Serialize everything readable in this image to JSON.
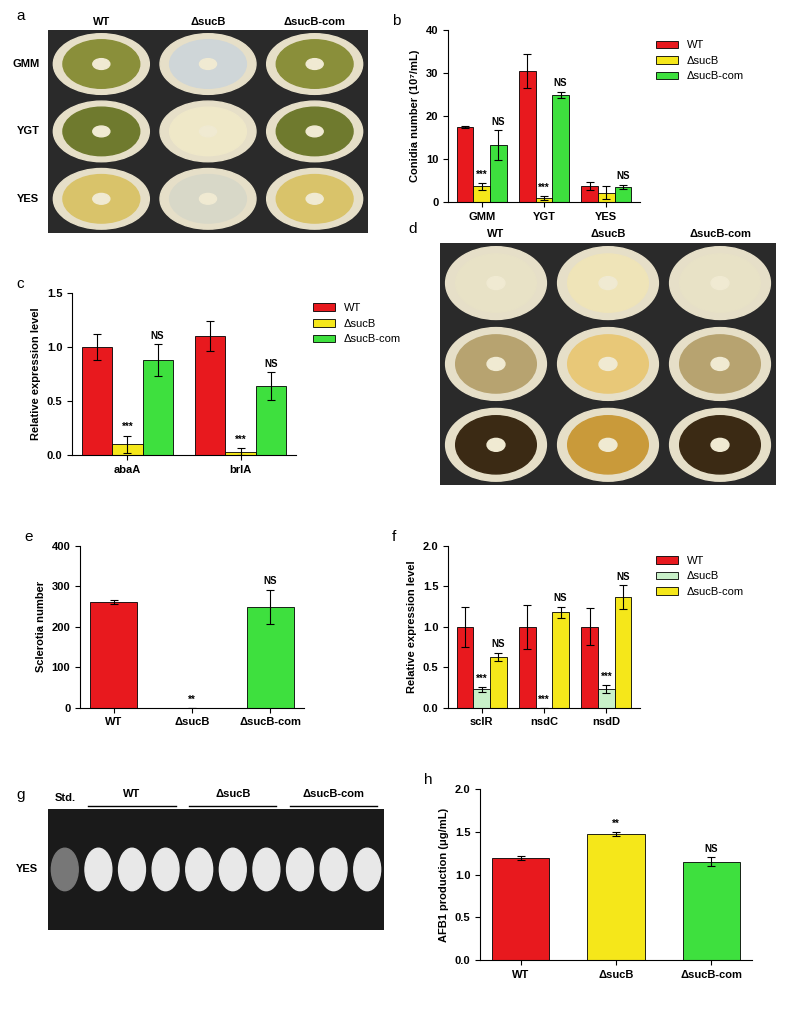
{
  "chart_data": [
    {
      "panel": "b",
      "type": "bar",
      "y_label": "Conidia number (10⁷/mL)",
      "categories": [
        "GMM",
        "YGT",
        "YES"
      ],
      "series": [
        {
          "name": "WT",
          "color": "#e8191e",
          "values": [
            17.5,
            30.5,
            3.8
          ],
          "error": [
            0.3,
            4.0,
            1.0
          ],
          "annotations": [
            null,
            null,
            null
          ]
        },
        {
          "name": "ΔsucB",
          "color": "#f5e71a",
          "values": [
            3.7,
            1.0,
            2.2
          ],
          "error": [
            0.8,
            0.4,
            1.5
          ],
          "annotations": [
            "***",
            "***",
            null
          ]
        },
        {
          "name": "ΔsucB-com",
          "color": "#3ee03e",
          "values": [
            13.3,
            25.0,
            3.6
          ],
          "error": [
            3.5,
            0.7,
            0.5
          ],
          "annotations": [
            "NS",
            "NS",
            "NS"
          ]
        }
      ],
      "ylim": [
        0,
        40
      ],
      "yticks": [
        0,
        10,
        20,
        30,
        40
      ],
      "legend": "upper left"
    },
    {
      "panel": "c",
      "type": "bar",
      "y_label": "Relative expression level",
      "categories": [
        "abaA",
        "brlA"
      ],
      "series": [
        {
          "name": "WT",
          "color": "#e8191e",
          "values": [
            1.0,
            1.1
          ],
          "error": [
            0.12,
            0.14
          ],
          "annotations": [
            null,
            null
          ]
        },
        {
          "name": "ΔsucB",
          "color": "#f5e71a",
          "values": [
            0.1,
            0.03
          ],
          "error": [
            0.08,
            0.03
          ],
          "annotations": [
            "***",
            "***"
          ]
        },
        {
          "name": "ΔsucB-com",
          "color": "#3ee03e",
          "values": [
            0.88,
            0.64
          ],
          "error": [
            0.15,
            0.13
          ],
          "annotations": [
            "NS",
            "NS"
          ]
        }
      ],
      "ylim": [
        0,
        1.5
      ],
      "yticks": [
        {
          "value": 0,
          "label": "0.0"
        },
        {
          "value": 0.5,
          "label": "0.5"
        },
        {
          "value": 1.0,
          "label": "1.0"
        },
        {
          "value": 1.5,
          "label": "1.5"
        }
      ],
      "legend": "upper left"
    },
    {
      "panel": "e",
      "type": "bar",
      "y_label": "Sclerotia number",
      "categories": [
        "WT",
        "ΔsucB",
        "ΔsucB-com"
      ],
      "values": [
        262,
        0,
        250
      ],
      "error": [
        5,
        0,
        42
      ],
      "annotations": [
        null,
        "**",
        "NS"
      ],
      "colors": [
        "#e8191e",
        "#f5e71a",
        "#3ee03e"
      ],
      "ylim": [
        0,
        400
      ],
      "yticks": [
        0,
        100,
        200,
        300,
        400
      ]
    },
    {
      "panel": "f",
      "type": "bar",
      "y_label": "Relative expression level",
      "categories": [
        "sclR",
        "nsdC",
        "nsdD"
      ],
      "series": [
        {
          "name": "WT",
          "color": "#e8191e",
          "values": [
            1.0,
            1.0,
            1.0
          ],
          "error": [
            0.25,
            0.27,
            0.23
          ],
          "annotations": [
            null,
            null,
            null
          ]
        },
        {
          "name": "ΔsucB",
          "color": "#c8f0c8",
          "values": [
            0.23,
            0.0,
            0.23
          ],
          "error": [
            0.03,
            0.0,
            0.05
          ],
          "annotations": [
            "***",
            "***",
            "***"
          ]
        },
        {
          "name": "ΔsucB-com",
          "color": "#f5e71a",
          "values": [
            0.63,
            1.18,
            1.37
          ],
          "error": [
            0.05,
            0.07,
            0.15
          ],
          "annotations": [
            "NS",
            "NS",
            "NS"
          ]
        }
      ],
      "ylim": [
        0,
        2.0
      ],
      "yticks": [
        {
          "value": 0,
          "label": "0.0"
        },
        {
          "value": 0.5,
          "label": "0.5"
        },
        {
          "value": 1.0,
          "label": "1.0"
        },
        {
          "value": 1.5,
          "label": "1.5"
        },
        {
          "value": 2.0,
          "label": "2.0"
        }
      ],
      "legend": "upper left"
    },
    {
      "panel": "h",
      "type": "bar",
      "y_label": "AFB1 production (μg/mL)",
      "categories": [
        "WT",
        "ΔsucB",
        "ΔsucB-com"
      ],
      "values": [
        1.19,
        1.47,
        1.15
      ],
      "error": [
        0.02,
        0.02,
        0.05
      ],
      "annotations": [
        null,
        "**",
        "NS"
      ],
      "colors": [
        "#e8191e",
        "#f5e71a",
        "#3ee03e"
      ],
      "ylim": [
        0,
        2.0
      ],
      "yticks": [
        {
          "value": 0,
          "label": "0.0"
        },
        {
          "value": 0.5,
          "label": "0.5"
        },
        {
          "value": 1.0,
          "label": "1.0"
        },
        {
          "value": 1.5,
          "label": "1.5"
        },
        {
          "value": 2.0,
          "label": "2.0"
        }
      ]
    }
  ],
  "images": [
    {
      "panel": "a",
      "columns": [
        "WT",
        "ΔsucB",
        "ΔsucB-com"
      ],
      "rows": [
        "GMM",
        "YGT",
        "YES"
      ]
    },
    {
      "panel": "d",
      "columns": [
        "WT",
        "ΔsucB",
        "ΔsucB-com"
      ],
      "rows": []
    },
    {
      "panel": "g",
      "lanes": [
        "Std.",
        "WT",
        "ΔsucB",
        "ΔsucB-com"
      ],
      "rows": [
        "YES"
      ]
    }
  ]
}
